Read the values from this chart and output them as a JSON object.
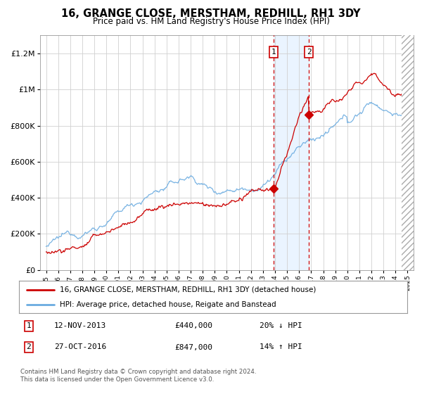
{
  "title": "16, GRANGE CLOSE, MERSTHAM, REDHILL, RH1 3DY",
  "subtitle": "Price paid vs. HM Land Registry's House Price Index (HPI)",
  "sale1_x": 2013.87,
  "sale1_price": 440000,
  "sale1_label": "1",
  "sale2_x": 2016.82,
  "sale2_price": 847000,
  "sale2_label": "2",
  "legend_line1": "16, GRANGE CLOSE, MERSTHAM, REDHILL, RH1 3DY (detached house)",
  "legend_line2": "HPI: Average price, detached house, Reigate and Banstead",
  "table1_num": "1",
  "table1_date": "12-NOV-2013",
  "table1_price": "£440,000",
  "table1_hpi": "20% ↓ HPI",
  "table2_num": "2",
  "table2_date": "27-OCT-2016",
  "table2_price": "£847,000",
  "table2_hpi": "14% ↑ HPI",
  "footnote": "Contains HM Land Registry data © Crown copyright and database right 2024.\nThis data is licensed under the Open Government Licence v3.0.",
  "hpi_color": "#6aabe0",
  "sale_color": "#cc0000",
  "shade_color": "#ddeeff",
  "ylim_min": 0,
  "ylim_max": 1300000,
  "xlim_min": 1994.5,
  "xlim_max": 2025.5,
  "yticks": [
    0,
    200000,
    400000,
    600000,
    800000,
    1000000,
    1200000
  ],
  "ytick_labels": [
    "£0",
    "£200K",
    "£400K",
    "£600K",
    "£800K",
    "£1M",
    "£1.2M"
  ]
}
